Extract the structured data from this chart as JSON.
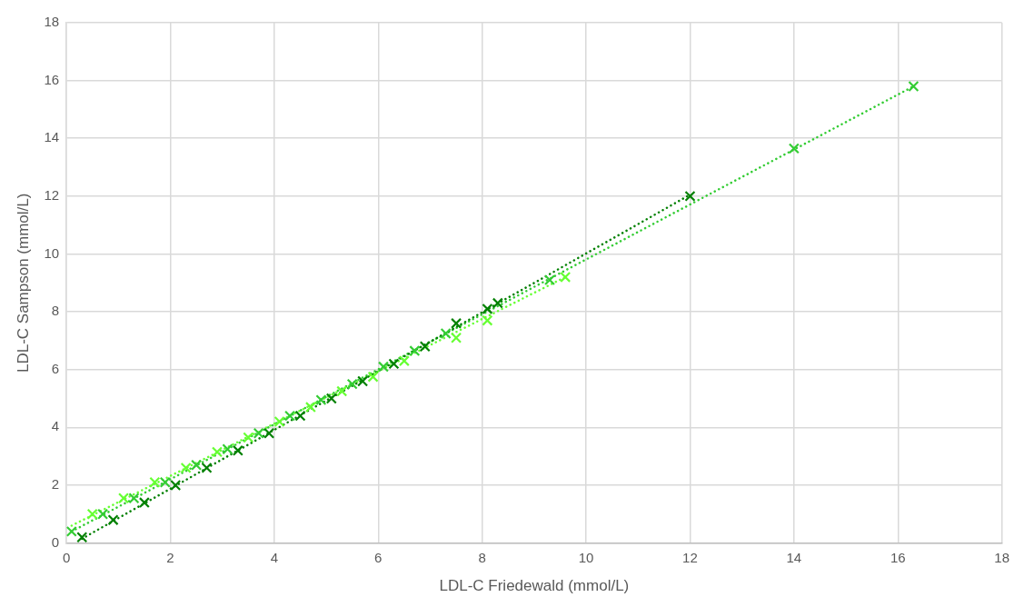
{
  "chart_data": {
    "type": "scatter",
    "xlabel": "LDL-C Friedewald (mmol/L)",
    "ylabel": "LDL-C Sampson (mmol/L)",
    "xlim": [
      0,
      18
    ],
    "ylim": [
      0,
      18
    ],
    "xticks": [
      0,
      2,
      4,
      6,
      8,
      10,
      12,
      14,
      16,
      18
    ],
    "yticks": [
      0,
      2,
      4,
      6,
      8,
      10,
      12,
      14,
      16,
      18
    ],
    "grid": true,
    "legend": false,
    "marker": "cross",
    "series": [
      {
        "color": "#008000",
        "x": [
          0.3,
          0.9,
          1.5,
          2.1,
          2.7,
          3.3,
          3.9,
          4.5,
          5.1,
          5.7,
          6.3,
          6.9,
          7.5,
          8.1,
          8.3,
          12
        ],
        "values": [
          0.2,
          0.8,
          1.4,
          2.0,
          2.6,
          3.2,
          3.8,
          4.4,
          5.0,
          5.6,
          6.2,
          6.8,
          7.6,
          8.1,
          8.3,
          12.0
        ]
      },
      {
        "color": "#33cc33",
        "x": [
          0.1,
          0.7,
          1.3,
          1.9,
          2.5,
          3.1,
          3.7,
          4.3,
          4.9,
          5.5,
          6.1,
          6.7,
          7.3,
          9.3,
          14.0,
          16.3
        ],
        "values": [
          0.4,
          1.0,
          1.55,
          2.1,
          2.7,
          3.25,
          3.8,
          4.4,
          4.95,
          5.5,
          6.1,
          6.65,
          7.25,
          9.1,
          13.65,
          15.8
        ]
      },
      {
        "color": "#66ff33",
        "x": [
          0.5,
          1.1,
          1.7,
          2.3,
          2.9,
          3.5,
          4.1,
          4.7,
          5.3,
          5.9,
          6.5,
          7.5,
          8.1,
          9.6
        ],
        "values": [
          1.0,
          1.55,
          2.1,
          2.6,
          3.15,
          3.65,
          4.2,
          4.7,
          5.25,
          5.75,
          6.3,
          7.1,
          7.7,
          9.2
        ]
      },
      {
        "type": "line",
        "color": "#008000",
        "line_style": "dotted",
        "marker": "none",
        "x": [
          0.3,
          12
        ],
        "values": [
          0.15,
          12.05
        ]
      },
      {
        "type": "line",
        "color": "#33cc33",
        "line_style": "dotted",
        "marker": "none",
        "x": [
          0.1,
          16.3
        ],
        "values": [
          0.4,
          15.8
        ]
      },
      {
        "type": "line",
        "color": "#66ff33",
        "line_style": "dotted",
        "marker": "none",
        "x": [
          0.1,
          9.6
        ],
        "values": [
          0.6,
          9.2
        ]
      }
    ]
  }
}
